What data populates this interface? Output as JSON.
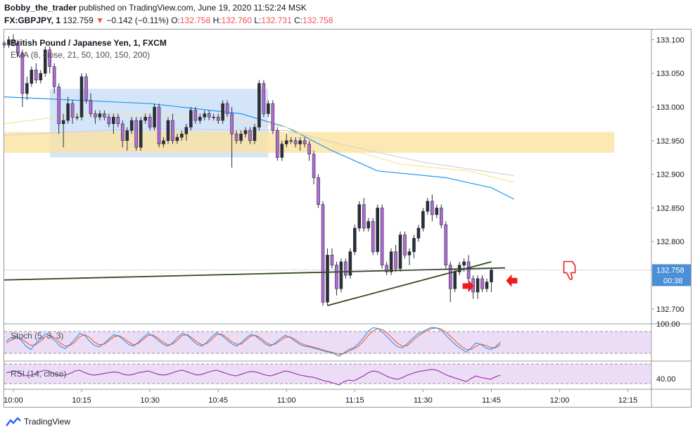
{
  "header": {
    "author": "Bobby_the_trader",
    "published": "published on TradingView.com, June 19, 2020 11:52:24 MSK",
    "symbol": "FX:GBPJPY, 1",
    "last": "132.759",
    "change": "−0.142 (−0.11%)",
    "open_label": "O:",
    "open": "132.758",
    "high_label": "H:",
    "high": "132.760",
    "low_label": "L:",
    "low": "132.731",
    "close_label": "C:",
    "close": "132.758"
  },
  "main_pane": {
    "title": "British Pound / Japanese Yen, 1, FXCM",
    "ema_label": "EMA (8, close, 21, 50, 100, 150, 200)",
    "price_tag": "132.758",
    "countdown": "00:38",
    "y_ticks": [
      "133.100",
      "133.050",
      "133.000",
      "132.950",
      "132.900",
      "132.850",
      "132.800",
      "132.700"
    ],
    "colors": {
      "up": "#2a2e39",
      "down": "#b36ad6",
      "trendline": "#2e4a1e",
      "support_zone": "#fbe2a0",
      "range_box": "#c7dcf7"
    }
  },
  "stoch_pane": {
    "label": "Stoch (5, 3, 3)",
    "tick": "100.00",
    "k_color": "#2196f3",
    "d_color": "#ff5722"
  },
  "rsi_pane": {
    "label": "RSI (14, close)",
    "tick": "40.00",
    "color": "#9c27b0"
  },
  "x_axis": {
    "ticks": [
      "10:00",
      "10:15",
      "10:30",
      "10:45",
      "11:00",
      "11:15",
      "11:30",
      "11:45",
      "12:00",
      "12:15"
    ]
  },
  "footer": {
    "brand": "TradingView"
  },
  "chart_data": {
    "type": "candlestick",
    "x_range": [
      "09:58",
      "12:20"
    ],
    "ylim": [
      132.68,
      133.115
    ],
    "ohlc": [
      [
        "09:58",
        133.095,
        133.098,
        133.088,
        133.092
      ],
      [
        "09:59",
        133.092,
        133.105,
        133.088,
        133.1
      ],
      [
        "10:00",
        133.1,
        133.108,
        133.09,
        133.095
      ],
      [
        "10:01",
        133.095,
        133.1,
        133.075,
        133.08
      ],
      [
        "10:02",
        133.08,
        133.085,
        133.0,
        133.02
      ],
      [
        "10:03",
        133.02,
        133.045,
        133.01,
        133.035
      ],
      [
        "10:04",
        133.035,
        133.06,
        133.03,
        133.055
      ],
      [
        "10:05",
        133.055,
        133.065,
        133.035,
        133.04
      ],
      [
        "10:06",
        133.04,
        133.055,
        133.035,
        133.05
      ],
      [
        "10:07",
        133.05,
        133.09,
        133.045,
        133.085
      ],
      [
        "10:08",
        133.085,
        133.09,
        133.05,
        133.06
      ],
      [
        "10:09",
        133.06,
        133.065,
        133.02,
        133.03
      ],
      [
        "10:10",
        133.03,
        133.035,
        132.96,
        132.975
      ],
      [
        "10:11",
        132.975,
        132.99,
        132.94,
        132.98
      ],
      [
        "10:12",
        132.98,
        133.015,
        132.975,
        133.005
      ],
      [
        "10:13",
        133.005,
        133.01,
        132.975,
        132.985
      ],
      [
        "10:14",
        132.985,
        132.99,
        132.98,
        132.985
      ],
      [
        "10:15",
        132.985,
        133.05,
        132.98,
        133.045
      ],
      [
        "10:16",
        133.045,
        133.05,
        133.005,
        133.01
      ],
      [
        "10:17",
        133.01,
        133.02,
        132.985,
        132.99
      ],
      [
        "10:18",
        132.99,
        132.995,
        132.975,
        132.985
      ],
      [
        "10:19",
        132.985,
        132.995,
        132.98,
        132.99
      ],
      [
        "10:20",
        132.99,
        132.995,
        132.98,
        132.985
      ],
      [
        "10:21",
        132.985,
        132.99,
        132.97,
        132.975
      ],
      [
        "10:22",
        132.975,
        132.99,
        132.96,
        132.985
      ],
      [
        "10:23",
        132.985,
        132.99,
        132.97,
        132.975
      ],
      [
        "10:24",
        132.975,
        132.98,
        132.94,
        132.95
      ],
      [
        "10:25",
        132.95,
        132.97,
        132.935,
        132.965
      ],
      [
        "10:26",
        132.965,
        132.985,
        132.96,
        132.98
      ],
      [
        "10:27",
        132.98,
        132.985,
        132.935,
        132.94
      ],
      [
        "10:28",
        132.94,
        132.985,
        132.935,
        132.98
      ],
      [
        "10:29",
        132.98,
        132.99,
        132.975,
        132.985
      ],
      [
        "10:30",
        132.985,
        132.99,
        132.965,
        132.97
      ],
      [
        "10:31",
        132.97,
        133.005,
        132.965,
        133.0
      ],
      [
        "10:32",
        133.0,
        133.005,
        132.94,
        132.945
      ],
      [
        "10:33",
        132.945,
        132.955,
        132.94,
        132.95
      ],
      [
        "10:34",
        132.95,
        132.985,
        132.945,
        132.98
      ],
      [
        "10:35",
        132.98,
        132.99,
        132.945,
        132.95
      ],
      [
        "10:36",
        132.95,
        132.96,
        132.945,
        132.955
      ],
      [
        "10:37",
        132.955,
        132.965,
        132.95,
        132.96
      ],
      [
        "10:38",
        132.96,
        132.975,
        132.95,
        132.97
      ],
      [
        "10:39",
        132.97,
        133.0,
        132.965,
        132.995
      ],
      [
        "10:40",
        132.995,
        133.0,
        132.975,
        132.98
      ],
      [
        "10:41",
        132.98,
        132.99,
        132.975,
        132.985
      ],
      [
        "10:42",
        132.985,
        132.995,
        132.98,
        132.99
      ],
      [
        "10:43",
        132.99,
        132.995,
        132.98,
        132.985
      ],
      [
        "10:44",
        132.985,
        132.99,
        132.98,
        132.985
      ],
      [
        "10:45",
        132.985,
        132.99,
        132.975,
        132.98
      ],
      [
        "10:46",
        132.98,
        133.01,
        132.975,
        133.005
      ],
      [
        "10:47",
        133.005,
        133.01,
        132.985,
        132.99
      ],
      [
        "10:48",
        132.99,
        133.0,
        132.91,
        132.96
      ],
      [
        "10:49",
        132.96,
        132.965,
        132.945,
        132.95
      ],
      [
        "10:50",
        132.95,
        132.965,
        132.945,
        132.96
      ],
      [
        "10:51",
        132.96,
        132.97,
        132.955,
        132.965
      ],
      [
        "10:52",
        132.965,
        132.97,
        132.945,
        132.95
      ],
      [
        "10:53",
        132.95,
        132.975,
        132.945,
        132.97
      ],
      [
        "10:54",
        132.97,
        133.04,
        132.965,
        133.035
      ],
      [
        "10:55",
        133.035,
        133.04,
        132.985,
        132.99
      ],
      [
        "10:56",
        132.99,
        133.01,
        132.985,
        133.005
      ],
      [
        "10:57",
        133.005,
        133.01,
        132.96,
        132.965
      ],
      [
        "10:58",
        132.965,
        132.97,
        132.92,
        132.925
      ],
      [
        "10:59",
        132.925,
        132.95,
        132.92,
        132.945
      ],
      [
        "11:00",
        132.945,
        132.96,
        132.94,
        132.95
      ],
      [
        "11:01",
        132.95,
        132.955,
        132.945,
        132.95
      ],
      [
        "11:02",
        132.95,
        132.955,
        132.94,
        132.945
      ],
      [
        "11:03",
        132.945,
        132.955,
        132.935,
        132.95
      ],
      [
        "11:04",
        132.95,
        132.955,
        132.94,
        132.945
      ],
      [
        "11:05",
        132.945,
        132.95,
        132.92,
        132.93
      ],
      [
        "11:06",
        132.93,
        132.935,
        132.885,
        132.895
      ],
      [
        "11:07",
        132.895,
        132.9,
        132.85,
        132.855
      ],
      [
        "11:08",
        132.855,
        132.86,
        132.705,
        132.71
      ],
      [
        "11:09",
        132.71,
        132.79,
        132.705,
        132.78
      ],
      [
        "11:10",
        132.78,
        132.79,
        132.76,
        132.765
      ],
      [
        "11:11",
        132.765,
        132.77,
        132.72,
        132.73
      ],
      [
        "11:12",
        132.73,
        132.775,
        132.725,
        132.77
      ],
      [
        "11:13",
        132.77,
        132.775,
        132.745,
        132.75
      ],
      [
        "11:14",
        132.75,
        132.79,
        132.745,
        132.785
      ],
      [
        "11:15",
        132.785,
        132.825,
        132.78,
        132.82
      ],
      [
        "11:16",
        132.82,
        132.86,
        132.815,
        132.855
      ],
      [
        "11:17",
        132.855,
        132.865,
        132.815,
        132.82
      ],
      [
        "11:18",
        132.82,
        132.835,
        132.815,
        132.83
      ],
      [
        "11:19",
        132.83,
        132.835,
        132.78,
        132.785
      ],
      [
        "11:20",
        132.785,
        132.855,
        132.78,
        132.85
      ],
      [
        "11:21",
        132.85,
        132.855,
        132.76,
        132.765
      ],
      [
        "11:22",
        132.765,
        132.77,
        132.75,
        132.755
      ],
      [
        "11:23",
        132.755,
        132.79,
        132.75,
        132.785
      ],
      [
        "11:24",
        132.785,
        132.795,
        132.755,
        132.76
      ],
      [
        "11:25",
        132.76,
        132.815,
        132.755,
        132.81
      ],
      [
        "11:26",
        132.81,
        132.815,
        132.775,
        132.78
      ],
      [
        "11:27",
        132.78,
        132.79,
        132.765,
        132.785
      ],
      [
        "11:28",
        132.785,
        132.81,
        132.775,
        132.805
      ],
      [
        "11:29",
        132.805,
        132.825,
        132.8,
        132.82
      ],
      [
        "11:30",
        132.82,
        132.85,
        132.815,
        132.845
      ],
      [
        "11:31",
        132.845,
        132.865,
        132.84,
        132.86
      ],
      [
        "11:32",
        132.86,
        132.87,
        132.83,
        132.84
      ],
      [
        "11:33",
        132.84,
        132.855,
        132.835,
        132.85
      ],
      [
        "11:34",
        132.85,
        132.855,
        132.82,
        132.825
      ],
      [
        "11:35",
        132.825,
        132.83,
        132.76,
        132.765
      ],
      [
        "11:36",
        132.765,
        132.77,
        132.71,
        132.73
      ],
      [
        "11:37",
        132.73,
        132.76,
        132.725,
        132.755
      ],
      [
        "11:38",
        132.755,
        132.77,
        132.75,
        132.765
      ],
      [
        "11:39",
        132.765,
        132.775,
        132.755,
        132.77
      ],
      [
        "11:40",
        132.77,
        132.78,
        132.74,
        132.745
      ],
      [
        "11:41",
        132.745,
        132.75,
        132.715,
        132.725
      ],
      [
        "11:42",
        132.725,
        132.75,
        132.715,
        132.745
      ],
      [
        "11:43",
        132.745,
        132.75,
        132.725,
        132.73
      ],
      [
        "11:44",
        132.73,
        132.745,
        132.725,
        132.74
      ],
      [
        "11:45",
        132.74,
        132.76,
        132.725,
        132.758
      ]
    ],
    "ema_series": [
      {
        "name": "EMA 8",
        "color": "#2196f3",
        "points": [
          [
            "09:58",
            133.015
          ],
          [
            "10:30",
            133.005
          ],
          [
            "10:50",
            132.99
          ],
          [
            "11:00",
            132.97
          ],
          [
            "11:10",
            132.935
          ],
          [
            "11:20",
            132.905
          ],
          [
            "11:35",
            132.895
          ],
          [
            "11:45",
            132.88
          ],
          [
            "11:50",
            132.863
          ]
        ]
      },
      {
        "name": "EMA 21",
        "color": "#f7e78a",
        "points": [
          [
            "09:58",
            132.975
          ],
          [
            "10:15",
            132.99
          ],
          [
            "10:45",
            132.985
          ],
          [
            "11:00",
            132.97
          ],
          [
            "11:10",
            132.945
          ],
          [
            "11:25",
            132.915
          ],
          [
            "11:40",
            132.905
          ],
          [
            "11:50",
            132.888
          ]
        ]
      },
      {
        "name": "EMA 50",
        "color": "#d8d0d8",
        "points": [
          [
            "09:58",
            132.958
          ],
          [
            "10:30",
            132.968
          ],
          [
            "11:00",
            132.965
          ],
          [
            "11:15",
            132.94
          ],
          [
            "11:30",
            132.918
          ],
          [
            "11:50",
            132.898
          ]
        ]
      }
    ],
    "zones": [
      {
        "type": "range_box",
        "x": [
          "10:08",
          "10:56"
        ],
        "y": [
          132.925,
          133.027
        ]
      },
      {
        "type": "support_zone",
        "x": [
          "09:58",
          "12:12"
        ],
        "y": [
          132.932,
          132.963
        ]
      }
    ],
    "trendlines": [
      {
        "x": [
          "09:58",
          "11:48"
        ],
        "y": [
          132.743,
          132.761
        ]
      },
      {
        "x": [
          "11:09",
          "11:45"
        ],
        "y": [
          132.705,
          132.77
        ]
      }
    ],
    "stoch": {
      "label": "Stoch (5, 3, 3)",
      "k": [
        55,
        65,
        70,
        58,
        40,
        30,
        48,
        62,
        76,
        70,
        56,
        40,
        33,
        45,
        60,
        78,
        72,
        55,
        42,
        38,
        48,
        62,
        74,
        70,
        58,
        45,
        40,
        52,
        66,
        78,
        70,
        58,
        46,
        40,
        50,
        66,
        78,
        72,
        58,
        45,
        40,
        52,
        68,
        80,
        72,
        60,
        48,
        40,
        50,
        64,
        75,
        70,
        58,
        46,
        40,
        50,
        62,
        72,
        66,
        55,
        45,
        40,
        38,
        34,
        30,
        25,
        22,
        18,
        10,
        20,
        30,
        35,
        48,
        65,
        85,
        95,
        92,
        80,
        65,
        50,
        38,
        35,
        48,
        62,
        75,
        82,
        90,
        96,
        94,
        85,
        70,
        55,
        42,
        32,
        22,
        35,
        50,
        45,
        35,
        30,
        38,
        52
      ],
      "d": [
        50,
        58,
        64,
        62,
        52,
        42,
        44,
        55,
        68,
        72,
        64,
        50,
        40,
        42,
        52,
        68,
        74,
        66,
        52,
        44,
        46,
        56,
        68,
        71,
        64,
        52,
        44,
        48,
        60,
        72,
        73,
        64,
        52,
        44,
        46,
        58,
        72,
        74,
        64,
        52,
        44,
        48,
        60,
        74,
        76,
        66,
        54,
        46,
        46,
        58,
        70,
        72,
        64,
        52,
        44,
        46,
        56,
        66,
        68,
        60,
        50,
        44,
        40,
        36,
        32,
        28,
        24,
        20,
        16,
        18,
        25,
        32,
        40,
        55,
        72,
        86,
        92,
        88,
        76,
        62,
        48,
        40,
        42,
        55,
        68,
        78,
        86,
        92,
        94,
        90,
        80,
        66,
        52,
        40,
        30,
        30,
        40,
        46,
        42,
        36,
        35,
        45
      ]
    },
    "rsi": {
      "label": "RSI (14, close)",
      "values": [
        52,
        54,
        56,
        50,
        44,
        46,
        50,
        55,
        58,
        54,
        48,
        44,
        46,
        50,
        56,
        58,
        52,
        48,
        46,
        48,
        50,
        52,
        54,
        52,
        48,
        46,
        48,
        52,
        54,
        56,
        52,
        48,
        46,
        48,
        52,
        56,
        58,
        54,
        50,
        46,
        48,
        52,
        56,
        58,
        54,
        50,
        46,
        44,
        48,
        52,
        55,
        54,
        50,
        46,
        44,
        48,
        52,
        56,
        54,
        50,
        46,
        44,
        42,
        40,
        36,
        32,
        30,
        26,
        22,
        30,
        34,
        32,
        38,
        44,
        52,
        56,
        54,
        48,
        42,
        38,
        36,
        40,
        46,
        50,
        54,
        56,
        58,
        60,
        58,
        52,
        46,
        42,
        38,
        34,
        30,
        38,
        44,
        40,
        38,
        36,
        42,
        46
      ]
    }
  }
}
